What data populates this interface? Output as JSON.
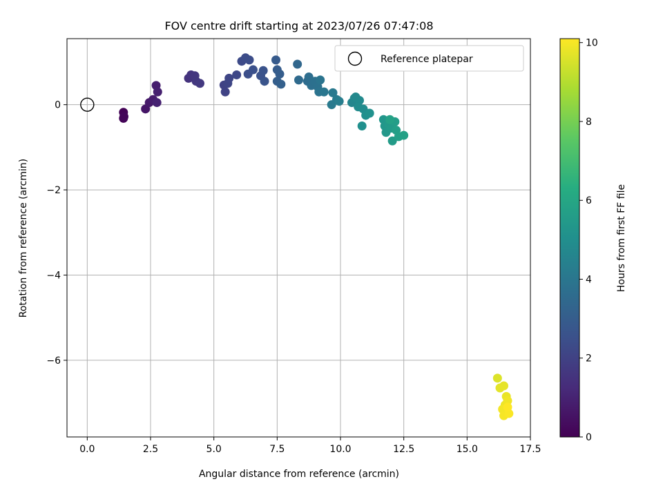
{
  "chart_data": {
    "type": "scatter",
    "title": "FOV centre drift starting at 2023/07/26 07:47:08",
    "xlabel": "Angular distance from reference (arcmin)",
    "ylabel": "Rotation from reference (arcmin)",
    "xlim": [
      -0.8,
      17.5
    ],
    "ylim": [
      -7.8,
      1.55
    ],
    "xticks": [
      0.0,
      2.5,
      5.0,
      7.5,
      10.0,
      12.5,
      15.0,
      17.5
    ],
    "xtick_labels": [
      "0.0",
      "2.5",
      "5.0",
      "7.5",
      "10.0",
      "12.5",
      "15.0",
      "17.5"
    ],
    "yticks": [
      -6,
      -4,
      -2,
      0
    ],
    "ytick_labels": [
      "−6",
      "−4",
      "−2",
      "0"
    ],
    "grid": true,
    "legend": {
      "placement": "top-right",
      "entries": [
        {
          "label": "Reference platepar",
          "marker": "open-circle"
        }
      ]
    },
    "reference_point": {
      "x": 0.0,
      "y": 0.0
    },
    "colorbar": {
      "label": "Hours from first FF file",
      "range": [
        0,
        10.1
      ],
      "ticks": [
        0,
        2,
        4,
        6,
        8,
        10
      ],
      "tick_labels": [
        "0",
        "2",
        "4",
        "6",
        "8",
        "10"
      ],
      "colormap": "viridis"
    },
    "series": [
      {
        "points": [
          [
            1.43,
            -0.18,
            0.05
          ],
          [
            1.43,
            -0.32,
            0.1
          ],
          [
            1.45,
            -0.28,
            0.15
          ],
          [
            2.3,
            -0.1,
            0.6
          ],
          [
            2.45,
            0.05,
            0.7
          ],
          [
            2.6,
            0.12,
            0.8
          ],
          [
            2.72,
            0.45,
            0.85
          ],
          [
            2.78,
            0.3,
            0.9
          ],
          [
            2.75,
            0.05,
            0.95
          ],
          [
            4.0,
            0.62,
            1.5
          ],
          [
            4.1,
            0.7,
            1.55
          ],
          [
            4.25,
            0.68,
            1.6
          ],
          [
            4.3,
            0.55,
            1.65
          ],
          [
            4.45,
            0.5,
            1.7
          ],
          [
            5.4,
            0.46,
            2.0
          ],
          [
            5.45,
            0.3,
            2.05
          ],
          [
            5.55,
            0.5,
            2.1
          ],
          [
            5.6,
            0.62,
            2.15
          ],
          [
            5.9,
            0.7,
            2.2
          ],
          [
            6.1,
            1.02,
            2.3
          ],
          [
            6.25,
            1.1,
            2.35
          ],
          [
            6.4,
            1.05,
            2.4
          ],
          [
            6.35,
            0.72,
            2.45
          ],
          [
            6.55,
            0.82,
            2.5
          ],
          [
            6.85,
            0.68,
            2.55
          ],
          [
            6.95,
            0.8,
            2.6
          ],
          [
            7.0,
            0.55,
            2.65
          ],
          [
            7.45,
            1.05,
            2.9
          ],
          [
            7.5,
            0.82,
            2.95
          ],
          [
            7.6,
            0.72,
            3.0
          ],
          [
            7.5,
            0.55,
            3.05
          ],
          [
            7.65,
            0.48,
            3.1
          ],
          [
            8.3,
            0.95,
            3.4
          ],
          [
            8.35,
            0.58,
            3.5
          ],
          [
            8.7,
            0.55,
            3.6
          ],
          [
            8.75,
            0.65,
            3.65
          ],
          [
            8.85,
            0.45,
            3.7
          ],
          [
            9.0,
            0.55,
            3.75
          ],
          [
            9.1,
            0.42,
            3.8
          ],
          [
            9.15,
            0.3,
            3.85
          ],
          [
            9.2,
            0.58,
            3.9
          ],
          [
            9.35,
            0.3,
            4.0
          ],
          [
            9.7,
            0.28,
            4.1
          ],
          [
            9.65,
            0.0,
            4.15
          ],
          [
            9.85,
            0.12,
            4.2
          ],
          [
            9.95,
            0.08,
            4.3
          ],
          [
            10.45,
            0.05,
            4.6
          ],
          [
            10.55,
            0.15,
            4.7
          ],
          [
            10.6,
            0.18,
            4.75
          ],
          [
            10.75,
            0.1,
            4.8
          ],
          [
            10.7,
            -0.05,
            4.85
          ],
          [
            10.9,
            -0.1,
            4.9
          ],
          [
            11.0,
            -0.25,
            5.0
          ],
          [
            10.85,
            -0.5,
            5.05
          ],
          [
            11.15,
            -0.2,
            5.1
          ],
          [
            11.7,
            -0.35,
            5.3
          ],
          [
            11.75,
            -0.5,
            5.35
          ],
          [
            11.8,
            -0.65,
            5.4
          ],
          [
            11.9,
            -0.45,
            5.45
          ],
          [
            12.0,
            -0.55,
            5.5
          ],
          [
            12.05,
            -0.85,
            5.55
          ],
          [
            12.15,
            -0.4,
            5.6
          ],
          [
            12.2,
            -0.6,
            5.65
          ],
          [
            12.3,
            -0.75,
            5.7
          ],
          [
            12.5,
            -0.72,
            5.75
          ],
          [
            11.95,
            -0.35,
            5.8
          ],
          [
            16.2,
            -6.42,
            9.6
          ],
          [
            16.3,
            -6.65,
            9.7
          ],
          [
            16.45,
            -6.6,
            9.75
          ],
          [
            16.55,
            -6.85,
            9.8
          ],
          [
            16.5,
            -7.05,
            9.85
          ],
          [
            16.6,
            -6.95,
            9.9
          ],
          [
            16.4,
            -7.15,
            9.95
          ],
          [
            16.45,
            -7.3,
            10.0
          ],
          [
            16.65,
            -7.25,
            10.05
          ],
          [
            16.6,
            -7.1,
            10.1
          ]
        ]
      }
    ]
  }
}
